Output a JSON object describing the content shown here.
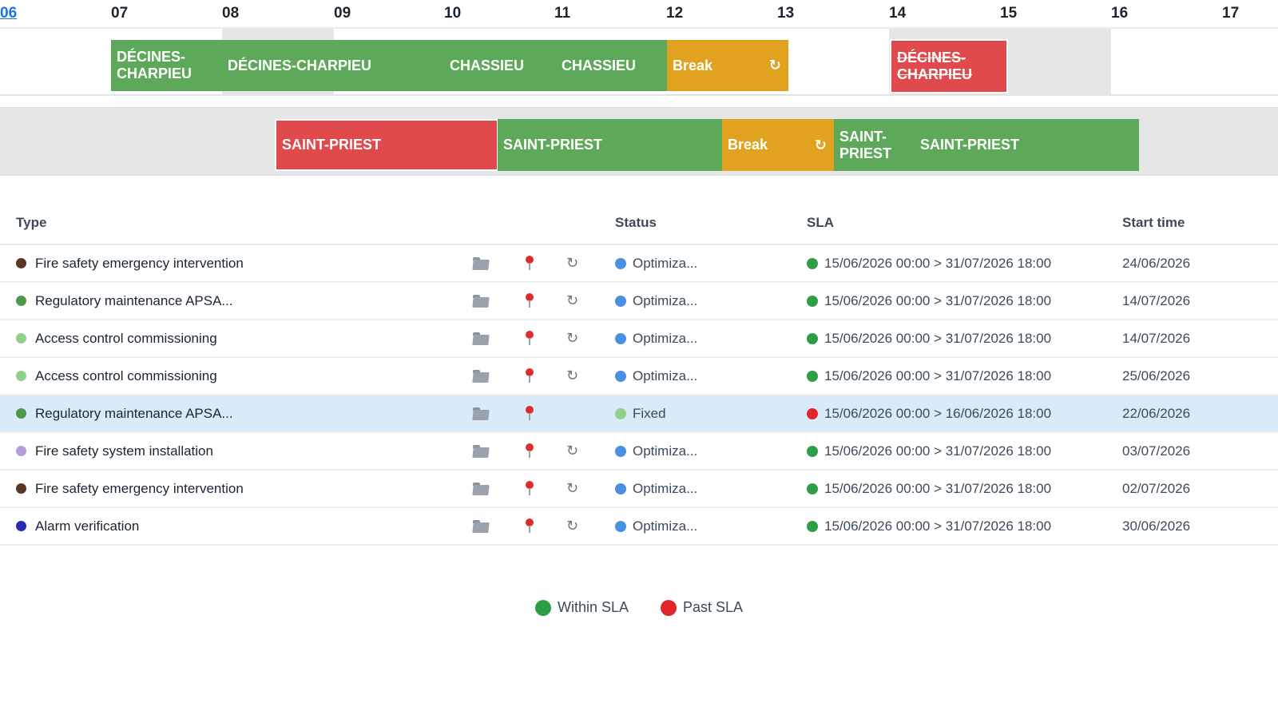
{
  "timeline": {
    "hours": [
      "06",
      "07",
      "08",
      "09",
      "10",
      "11",
      "12",
      "13",
      "14",
      "15",
      "16",
      "17"
    ]
  },
  "lane1": {
    "blocks": [
      {
        "label": "DÉCINES-CHARPIEU",
        "kind": "green"
      },
      {
        "label": "DÉCINES-CHARPIEU",
        "kind": "green"
      },
      {
        "label": "CHASSIEU",
        "kind": "green"
      },
      {
        "label": "CHASSIEU",
        "kind": "green"
      },
      {
        "label": "Break",
        "kind": "orange",
        "icon": "refresh-icon"
      },
      {
        "label": "DÉCINES-CHARPIEU",
        "kind": "red",
        "struck": true
      }
    ]
  },
  "lane2": {
    "blocks": [
      {
        "label": "SAINT-PRIEST",
        "kind": "red"
      },
      {
        "label": "SAINT-PRIEST",
        "kind": "green"
      },
      {
        "label": "Break",
        "kind": "orange",
        "icon": "refresh-icon"
      },
      {
        "label": "SAINT-PRIEST",
        "kind": "green"
      },
      {
        "label": "SAINT-PRIEST",
        "kind": "green"
      }
    ]
  },
  "refresh_glyph": "↻",
  "table": {
    "headers": {
      "type": "Type",
      "status": "Status",
      "sla": "SLA",
      "start": "Start time"
    },
    "rows": [
      {
        "type": "Fire safety emergency intervention",
        "type_color": "#5b3526",
        "status": "Optimiza...",
        "status_color": "#4a8fe2",
        "sla": "15/06/2026 00:00 > 31/07/2026 18:00",
        "sla_color": "#2e9e46",
        "start": "24/06/2026",
        "has_refresh": true,
        "selected": false
      },
      {
        "type": "Regulatory maintenance APSA...",
        "type_color": "#4e9a4a",
        "status": "Optimiza...",
        "status_color": "#4a8fe2",
        "sla": "15/06/2026 00:00 > 31/07/2026 18:00",
        "sla_color": "#2e9e46",
        "start": "14/07/2026",
        "has_refresh": true,
        "selected": false
      },
      {
        "type": "Access control commissioning",
        "type_color": "#8fd18a",
        "status": "Optimiza...",
        "status_color": "#4a8fe2",
        "sla": "15/06/2026 00:00 > 31/07/2026 18:00",
        "sla_color": "#2e9e46",
        "start": "14/07/2026",
        "has_refresh": true,
        "selected": false
      },
      {
        "type": "Access control commissioning",
        "type_color": "#8fd18a",
        "status": "Optimiza...",
        "status_color": "#4a8fe2",
        "sla": "15/06/2026 00:00 > 31/07/2026 18:00",
        "sla_color": "#2e9e46",
        "start": "25/06/2026",
        "has_refresh": true,
        "selected": false
      },
      {
        "type": "Regulatory maintenance APSA...",
        "type_color": "#4e9a4a",
        "status": "Fixed",
        "status_color": "#8fd18a",
        "sla": "15/06/2026 00:00 > 16/06/2026 18:00",
        "sla_color": "#e0262b",
        "start": "22/06/2026",
        "has_refresh": false,
        "selected": true
      },
      {
        "type": "Fire safety system installation",
        "type_color": "#b39ddb",
        "status": "Optimiza...",
        "status_color": "#4a8fe2",
        "sla": "15/06/2026 00:00 > 31/07/2026 18:00",
        "sla_color": "#2e9e46",
        "start": "03/07/2026",
        "has_refresh": true,
        "selected": false
      },
      {
        "type": "Fire safety emergency intervention",
        "type_color": "#5b3526",
        "status": "Optimiza...",
        "status_color": "#4a8fe2",
        "sla": "15/06/2026 00:00 > 31/07/2026 18:00",
        "sla_color": "#2e9e46",
        "start": "02/07/2026",
        "has_refresh": true,
        "selected": false
      },
      {
        "type": "Alarm verification",
        "type_color": "#2a2ab0",
        "status": "Optimiza...",
        "status_color": "#4a8fe2",
        "sla": "15/06/2026 00:00 > 31/07/2026 18:00",
        "sla_color": "#2e9e46",
        "start": "30/06/2026",
        "has_refresh": true,
        "selected": false
      }
    ]
  },
  "legend": [
    {
      "label": "Within SLA",
      "color": "#2e9e46"
    },
    {
      "label": "Past SLA",
      "color": "#e0262b"
    }
  ]
}
